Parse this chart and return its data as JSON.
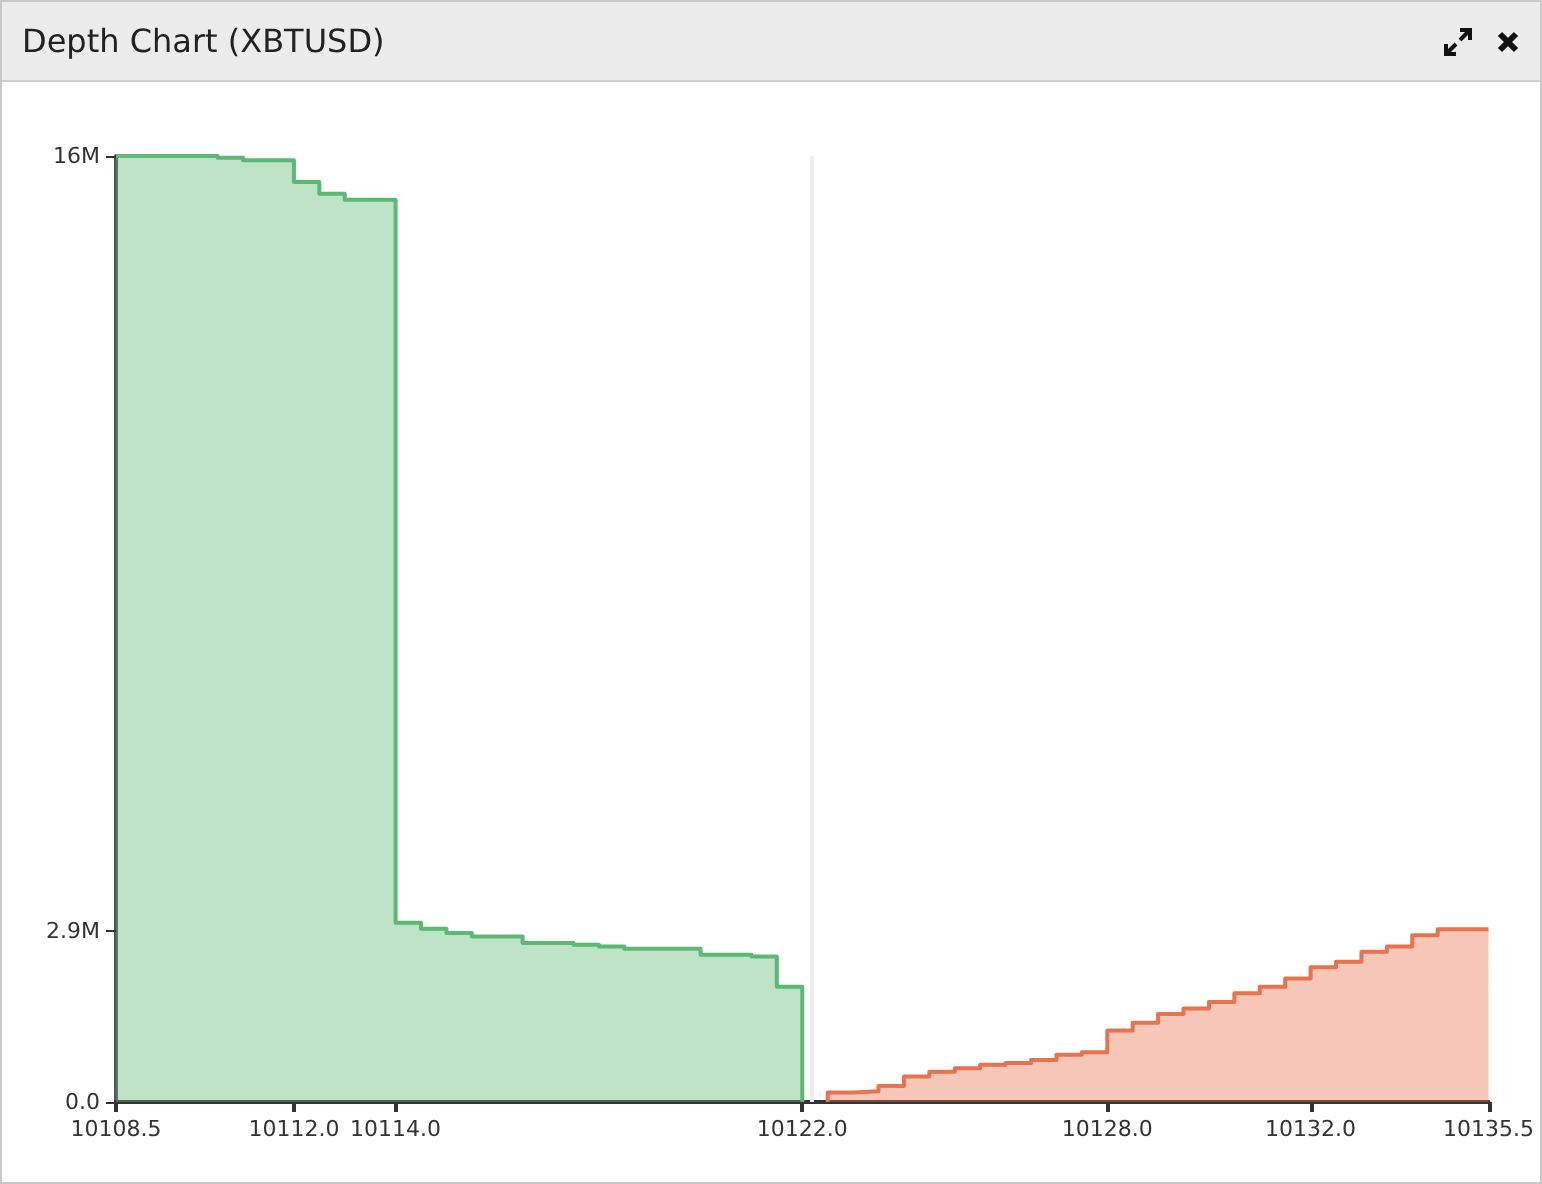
{
  "chart_data": {
    "type": "area",
    "title": "Depth Chart (XBTUSD)",
    "series": [
      {
        "color": "#5cb874",
        "x": [
          10108.5,
          10110.5,
          10110.5,
          10111,
          10111,
          10112,
          10112,
          10112.5,
          10112.5,
          10113,
          10113,
          10114,
          10114,
          10114.5,
          10114.5,
          10115,
          10115,
          10115.5,
          10115.5,
          10116.5,
          10116.5,
          10117.5,
          10117.5,
          10118,
          10118,
          10118.5,
          10118.5,
          10120,
          10120,
          10121,
          10121,
          10121.5,
          10121.5,
          10122,
          10122
        ],
        "values": [
          16000000,
          16000000,
          15970000,
          15970000,
          15930000,
          15930000,
          15560000,
          15560000,
          15360000,
          15360000,
          15260000,
          15260000,
          3030000,
          3030000,
          2930000,
          2930000,
          2860000,
          2860000,
          2800000,
          2800000,
          2690000,
          2690000,
          2660000,
          2660000,
          2630000,
          2630000,
          2590000,
          2590000,
          2490000,
          2490000,
          2460000,
          2460000,
          1950000,
          1950000,
          0
        ]
      },
      {
        "color": "#e8734f",
        "x": [
          10122.5,
          10122.5,
          10123,
          10123,
          10123.5,
          10123.5,
          10124,
          10124,
          10124.5,
          10124.5,
          10125,
          10125,
          10125.5,
          10125.5,
          10126,
          10126,
          10126.5,
          10126.5,
          10127,
          10127,
          10127.5,
          10127.5,
          10128,
          10128,
          10128.5,
          10128.5,
          10129,
          10129,
          10129.5,
          10129.5,
          10130,
          10130,
          10130.5,
          10130.5,
          10131,
          10131,
          10131.5,
          10131.5,
          10132,
          10132,
          10132.5,
          10132.5,
          10133,
          10133,
          10133.5,
          10133.5,
          10134,
          10134,
          10134.5,
          10134.5,
          10135.5
        ],
        "values": [
          0,
          160000,
          160000,
          180000,
          180000,
          270000,
          270000,
          430000,
          430000,
          510000,
          510000,
          570000,
          570000,
          630000,
          630000,
          660000,
          660000,
          710000,
          710000,
          800000,
          800000,
          840000,
          840000,
          1210000,
          1210000,
          1340000,
          1340000,
          1490000,
          1490000,
          1580000,
          1580000,
          1690000,
          1690000,
          1840000,
          1840000,
          1950000,
          1950000,
          2090000,
          2090000,
          2280000,
          2280000,
          2370000,
          2370000,
          2540000,
          2540000,
          2630000,
          2630000,
          2820000,
          2820000,
          2920000,
          2920000
        ]
      }
    ],
    "xlim": [
      10108.5,
      10135.5
    ],
    "xticks": [
      {
        "value": 10108.5,
        "label": "10108.5"
      },
      {
        "value": 10112,
        "label": "10112.0"
      },
      {
        "value": 10114,
        "label": "10114.0"
      },
      {
        "value": 10122,
        "label": "10122.0"
      },
      {
        "value": 10128,
        "label": "10128.0"
      },
      {
        "value": 10132,
        "label": "10132.0"
      },
      {
        "value": 10135.5,
        "label": "10135.5"
      }
    ],
    "ylim": [
      0,
      16000000
    ],
    "yticks": [
      {
        "value": 0,
        "label": "0.0"
      },
      {
        "value": 2900000,
        "label": "2.9M"
      },
      {
        "value": 16000000,
        "label": "16M"
      }
    ],
    "ref_lines": [
      {
        "axis": "x",
        "value": 10122.2,
        "color": "#eeeeee"
      }
    ],
    "grid": false
  }
}
